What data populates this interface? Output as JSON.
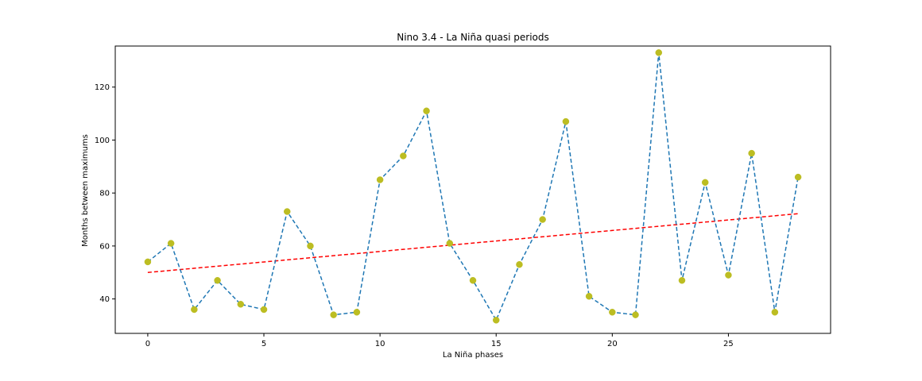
{
  "chart_data": {
    "type": "line",
    "title": "Nino 3.4 - La Niña quasi periods",
    "xlabel": "La Niña phases",
    "ylabel": "Months between maximums",
    "xlim": [
      -1.4,
      29.4
    ],
    "ylim": [
      27,
      135.5
    ],
    "xticks": [
      0,
      5,
      10,
      15,
      20,
      25
    ],
    "yticks": [
      40,
      60,
      80,
      100,
      120
    ],
    "grid": false,
    "x": [
      0,
      1,
      2,
      3,
      4,
      5,
      6,
      7,
      8,
      9,
      10,
      11,
      12,
      13,
      14,
      15,
      16,
      17,
      18,
      19,
      20,
      21,
      22,
      23,
      24,
      25,
      26,
      27,
      28
    ],
    "series": [
      {
        "values": [
          54,
          61,
          36,
          47,
          38,
          36,
          73,
          60,
          34,
          35,
          85,
          94,
          111,
          61,
          47,
          32,
          53,
          70,
          107,
          41,
          35,
          34,
          133,
          47,
          84,
          49,
          95,
          35,
          86
        ],
        "line_color": "#1f77b4",
        "line_style": "dashed",
        "marker_color": "#bcbd22",
        "marker": "circle"
      },
      {
        "x": [
          0,
          28
        ],
        "values": [
          50.0,
          72.2
        ],
        "line_color": "#ff0000",
        "line_style": "dashed",
        "marker": "none"
      }
    ]
  }
}
